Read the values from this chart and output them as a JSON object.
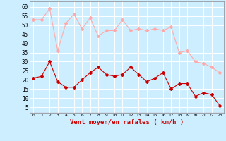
{
  "x": [
    0,
    1,
    2,
    3,
    4,
    5,
    6,
    7,
    8,
    9,
    10,
    11,
    12,
    13,
    14,
    15,
    16,
    17,
    18,
    19,
    20,
    21,
    22,
    23
  ],
  "wind_avg": [
    21,
    22,
    30,
    19,
    16,
    16,
    20,
    24,
    27,
    23,
    22,
    23,
    27,
    23,
    19,
    21,
    24,
    15,
    18,
    18,
    11,
    13,
    12,
    6
  ],
  "wind_gust": [
    53,
    53,
    59,
    36,
    51,
    56,
    48,
    54,
    44,
    47,
    47,
    53,
    47,
    48,
    47,
    48,
    47,
    49,
    35,
    36,
    30,
    29,
    27,
    24
  ],
  "avg_color": "#cc0000",
  "gust_color": "#ffaaaa",
  "bg_color": "#cceeff",
  "grid_color": "#ffffff",
  "xlabel": "Vent moyen/en rafales ( km/h )",
  "xlabel_color": "#cc0000",
  "yticks": [
    5,
    10,
    15,
    20,
    25,
    30,
    35,
    40,
    45,
    50,
    55,
    60
  ],
  "ylim": [
    2,
    63
  ],
  "xlim": [
    -0.5,
    23.5
  ],
  "spine_color": "#888888",
  "tick_color": "#000000"
}
